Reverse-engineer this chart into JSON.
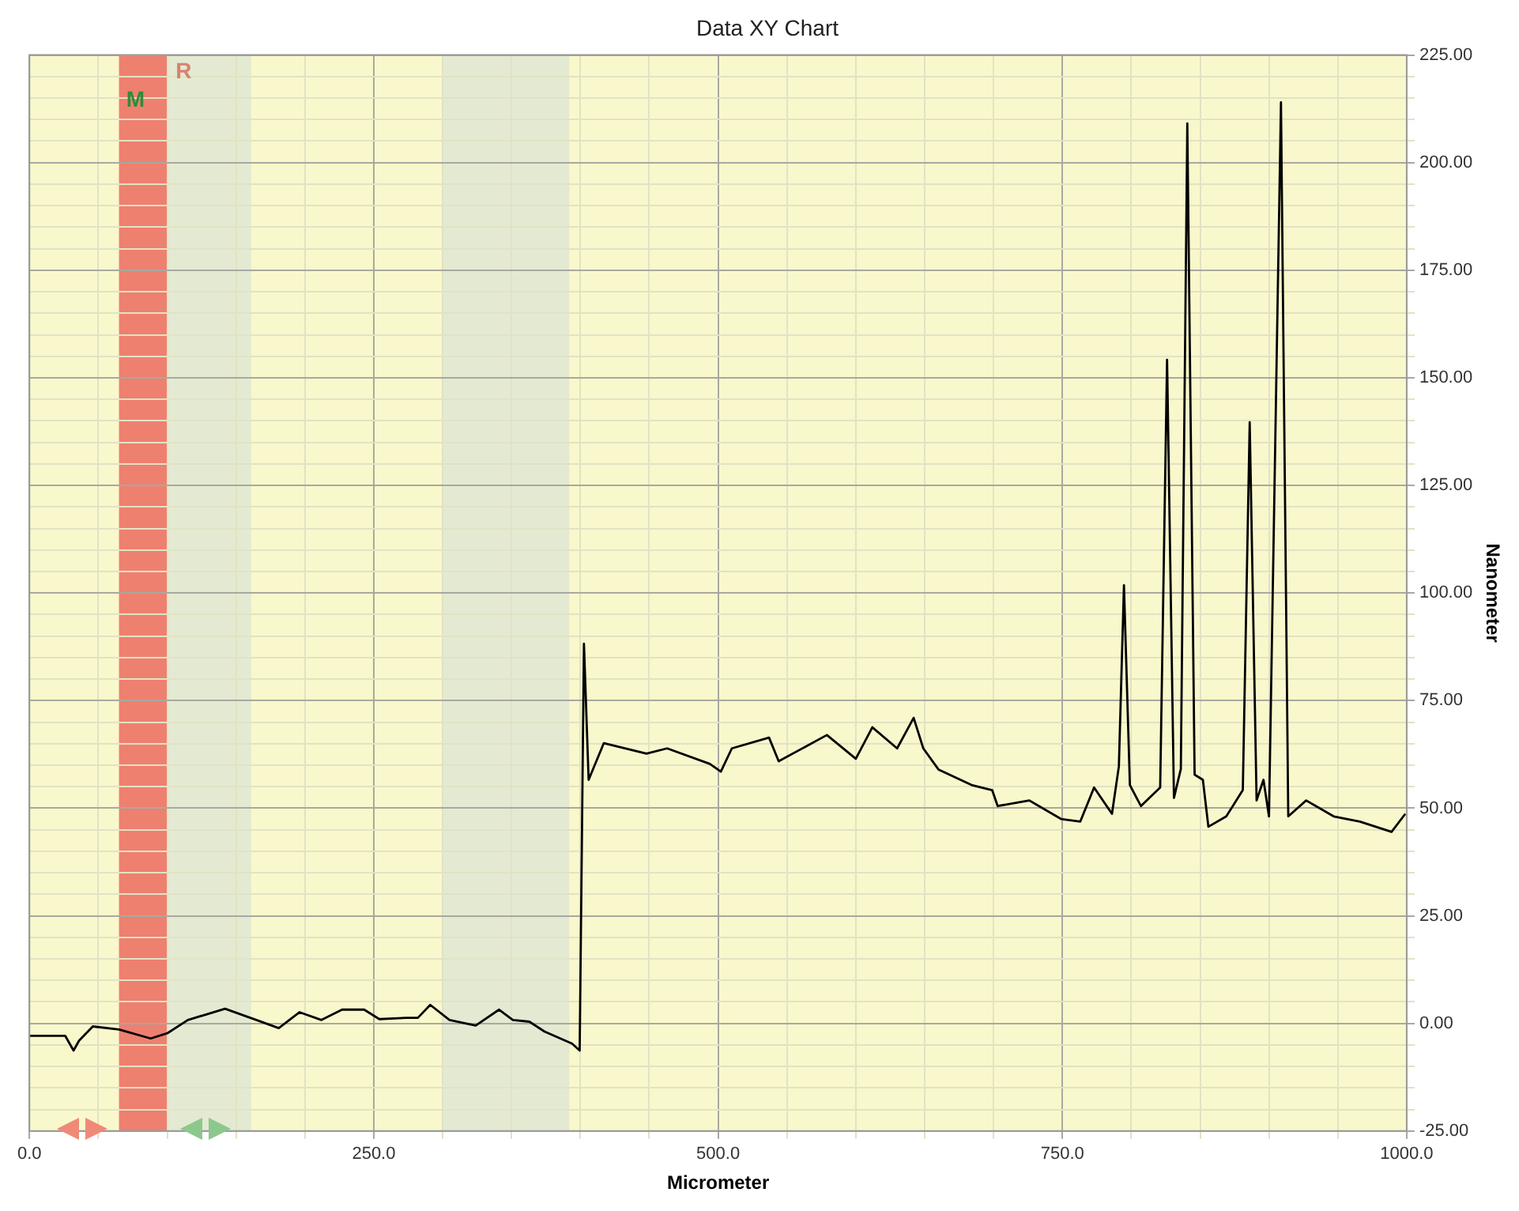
{
  "chart_data": {
    "type": "line",
    "title": "Data XY Chart",
    "xlabel": "Micrometer",
    "ylabel": "Nanometer",
    "x": [
      0,
      26,
      32,
      36,
      46,
      65,
      88,
      100,
      115,
      142,
      162,
      181,
      196,
      212,
      227,
      243,
      254,
      274,
      282,
      291,
      305,
      324,
      341,
      351,
      363,
      374,
      394,
      399.5,
      402.6,
      406,
      417,
      448,
      463,
      494,
      502,
      510,
      537,
      544,
      579,
      600,
      612,
      630,
      642,
      649,
      660,
      684,
      699,
      703,
      726,
      749,
      763,
      773,
      786,
      791,
      794.7,
      799,
      807,
      821,
      826,
      831,
      836,
      840.7,
      846,
      852,
      856,
      869,
      881,
      886,
      891,
      896,
      900,
      908.7,
      914,
      927,
      947,
      966,
      989,
      999
    ],
    "series": [
      {
        "color": "#000000",
        "values": [
          -2.9,
          -2.9,
          -6.3,
          -4,
          -0.7,
          -1.4,
          -3.5,
          -2.3,
          0.8,
          3.4,
          1.1,
          -1.1,
          2.6,
          0.8,
          3.2,
          3.2,
          1,
          1.3,
          1.3,
          4.3,
          0.8,
          -0.5,
          3.2,
          0.8,
          0.4,
          -1.9,
          -4.7,
          -6.3,
          88.2,
          56.6,
          65.1,
          62.7,
          63.9,
          60.3,
          58.5,
          63.9,
          66.4,
          60.9,
          67,
          61.5,
          68.8,
          63.9,
          71,
          63.9,
          59,
          55.4,
          54.2,
          50.5,
          51.8,
          47.5,
          46.9,
          54.8,
          48.7,
          59.7,
          101.8,
          55.4,
          50.5,
          54.8,
          154.2,
          52.4,
          59.1,
          209.1,
          57.8,
          56.6,
          45.7,
          48.1,
          54.2,
          139.7,
          51.8,
          56.6,
          48.1,
          214,
          48.1,
          51.8,
          48.1,
          46.9,
          44.5,
          48.7
        ]
      }
    ],
    "xlim": [
      0,
      1000
    ],
    "ylim": [
      -25,
      225
    ],
    "xticks": [
      {
        "value": 0,
        "label": "0.0"
      },
      {
        "value": 50,
        "label": null
      },
      {
        "value": 100,
        "label": null
      },
      {
        "value": 150,
        "label": null
      },
      {
        "value": 200,
        "label": null
      },
      {
        "value": 250,
        "label": "250.0"
      },
      {
        "value": 300,
        "label": null
      },
      {
        "value": 350,
        "label": null
      },
      {
        "value": 400,
        "label": null
      },
      {
        "value": 450,
        "label": null
      },
      {
        "value": 500,
        "label": "500.0"
      },
      {
        "value": 550,
        "label": null
      },
      {
        "value": 600,
        "label": null
      },
      {
        "value": 650,
        "label": null
      },
      {
        "value": 700,
        "label": null
      },
      {
        "value": 750,
        "label": "750.0"
      },
      {
        "value": 800,
        "label": null
      },
      {
        "value": 850,
        "label": null
      },
      {
        "value": 900,
        "label": null
      },
      {
        "value": 950,
        "label": null
      },
      {
        "value": 1000,
        "label": "1000.0"
      }
    ],
    "yticks": [
      {
        "value": -25,
        "label": "-25.00"
      },
      {
        "value": -20,
        "label": null
      },
      {
        "value": -15,
        "label": null
      },
      {
        "value": -10,
        "label": null
      },
      {
        "value": -5,
        "label": null
      },
      {
        "value": 0,
        "label": "0.00"
      },
      {
        "value": 5,
        "label": null
      },
      {
        "value": 10,
        "label": null
      },
      {
        "value": 15,
        "label": null
      },
      {
        "value": 20,
        "label": null
      },
      {
        "value": 25,
        "label": "25.00"
      },
      {
        "value": 30,
        "label": null
      },
      {
        "value": 35,
        "label": null
      },
      {
        "value": 40,
        "label": null
      },
      {
        "value": 45,
        "label": null
      },
      {
        "value": 50,
        "label": "50.00"
      },
      {
        "value": 55,
        "label": null
      },
      {
        "value": 60,
        "label": null
      },
      {
        "value": 65,
        "label": null
      },
      {
        "value": 70,
        "label": null
      },
      {
        "value": 75,
        "label": "75.00"
      },
      {
        "value": 80,
        "label": null
      },
      {
        "value": 85,
        "label": null
      },
      {
        "value": 90,
        "label": null
      },
      {
        "value": 95,
        "label": null
      },
      {
        "value": 100,
        "label": "100.00"
      },
      {
        "value": 105,
        "label": null
      },
      {
        "value": 110,
        "label": null
      },
      {
        "value": 115,
        "label": null
      },
      {
        "value": 120,
        "label": null
      },
      {
        "value": 125,
        "label": "125.00"
      },
      {
        "value": 130,
        "label": null
      },
      {
        "value": 135,
        "label": null
      },
      {
        "value": 140,
        "label": null
      },
      {
        "value": 145,
        "label": null
      },
      {
        "value": 150,
        "label": "150.00"
      },
      {
        "value": 155,
        "label": null
      },
      {
        "value": 160,
        "label": null
      },
      {
        "value": 165,
        "label": null
      },
      {
        "value": 170,
        "label": null
      },
      {
        "value": 175,
        "label": "175.00"
      },
      {
        "value": 180,
        "label": null
      },
      {
        "value": 185,
        "label": null
      },
      {
        "value": 190,
        "label": null
      },
      {
        "value": 195,
        "label": null
      },
      {
        "value": 200,
        "label": "200.00"
      },
      {
        "value": 205,
        "label": null
      },
      {
        "value": 210,
        "label": null
      },
      {
        "value": 215,
        "label": null
      },
      {
        "value": 220,
        "label": null
      },
      {
        "value": 225,
        "label": "225.00"
      }
    ],
    "bands": [
      {
        "axis": "x",
        "from": 65,
        "to": 100,
        "label": "M",
        "color": "#ee8070"
      },
      {
        "axis": "x",
        "from": 100,
        "to": 161,
        "label": "R",
        "color": "#e4ead2"
      },
      {
        "axis": "x",
        "from": 300,
        "to": 392,
        "label": null,
        "color": "#e4ead2"
      }
    ],
    "grid": true,
    "legend": false,
    "marker": "none",
    "line_style": "solid"
  }
}
